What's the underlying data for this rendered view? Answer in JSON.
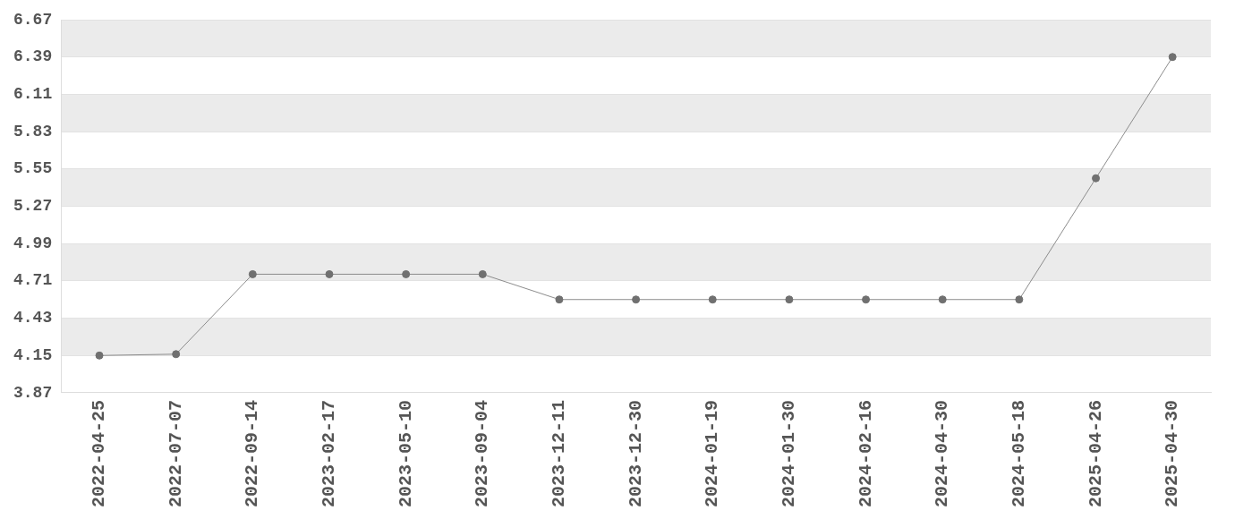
{
  "chart_data": {
    "type": "line",
    "categories": [
      "2022-04-25",
      "2022-07-07",
      "2022-09-14",
      "2023-02-17",
      "2023-05-10",
      "2023-09-04",
      "2023-12-11",
      "2023-12-30",
      "2024-01-19",
      "2024-01-30",
      "2024-02-16",
      "2024-04-30",
      "2024-05-18",
      "2025-04-26",
      "2025-04-30"
    ],
    "series": [
      {
        "color": "#707070",
        "values": [
          4.15,
          4.16,
          4.76,
          4.76,
          4.76,
          4.76,
          4.57,
          4.57,
          4.57,
          4.57,
          4.57,
          4.57,
          4.57,
          5.48,
          6.39
        ]
      }
    ],
    "ylim": [
      3.87,
      6.67
    ],
    "yticks": [
      3.87,
      4.15,
      4.43,
      4.71,
      4.99,
      5.27,
      5.55,
      5.83,
      6.11,
      6.39,
      6.67
    ],
    "grid": "y",
    "marker": "circle",
    "line_style": "solid",
    "legend": false
  }
}
